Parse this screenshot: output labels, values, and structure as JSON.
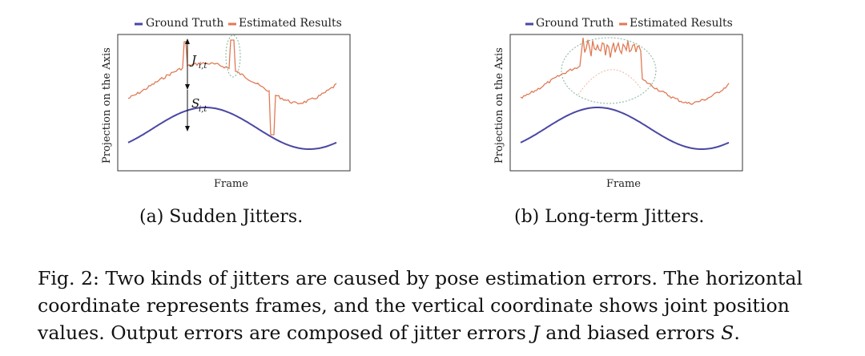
{
  "figure": {
    "panel_a": {
      "legend": {
        "ground_truth": "Ground Truth",
        "estimated": "Estimated Results"
      },
      "xlabel": "Frame",
      "ylabel": "Projection on the Axis",
      "annot_j": "J",
      "annot_j_sub": "i,t",
      "annot_s": "S",
      "annot_s_sub": "i,t",
      "subcaption": "(a) Sudden Jitters."
    },
    "panel_b": {
      "legend": {
        "ground_truth": "Ground Truth",
        "estimated": "Estimated Results"
      },
      "xlabel": "Frame",
      "ylabel": "Projection on the Axis",
      "subcaption": "(b) Long-term Jitters."
    },
    "caption_lines": [
      "Fig. 2: Two kinds of jitters are caused by pose estimation errors. The horizontal",
      "coordinate represents frames, and the vertical coordinate shows joint position"
    ],
    "caption_line3_pre": "values. Output errors are composed of jitter errors ",
    "caption_j": "J",
    "caption_line3_mid": " and biased errors ",
    "caption_s": "S",
    "caption_line3_post": ".",
    "colors": {
      "ground_truth": "#4a47a3",
      "estimated": "#e07a55",
      "highlight": "#7fb59a"
    }
  }
}
